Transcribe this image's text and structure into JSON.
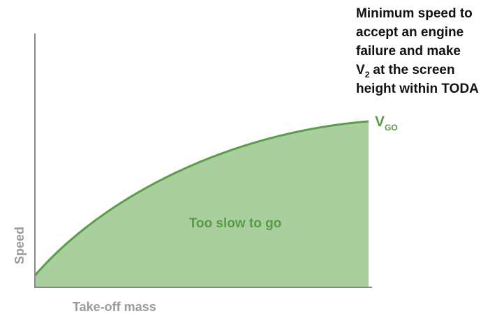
{
  "annotation": {
    "lines": [
      "Minimum speed to",
      "accept an engine",
      "failure and make"
    ],
    "v2_line": {
      "symbol": "V",
      "subscript": "2",
      "text": "at the screen"
    },
    "last_line": "height within TODA"
  },
  "curve_label": {
    "symbol": "V",
    "subscript": "GO"
  },
  "region_label": "Too slow to go",
  "y_axis_label": "Speed",
  "x_axis_label": "Take-off mass"
}
